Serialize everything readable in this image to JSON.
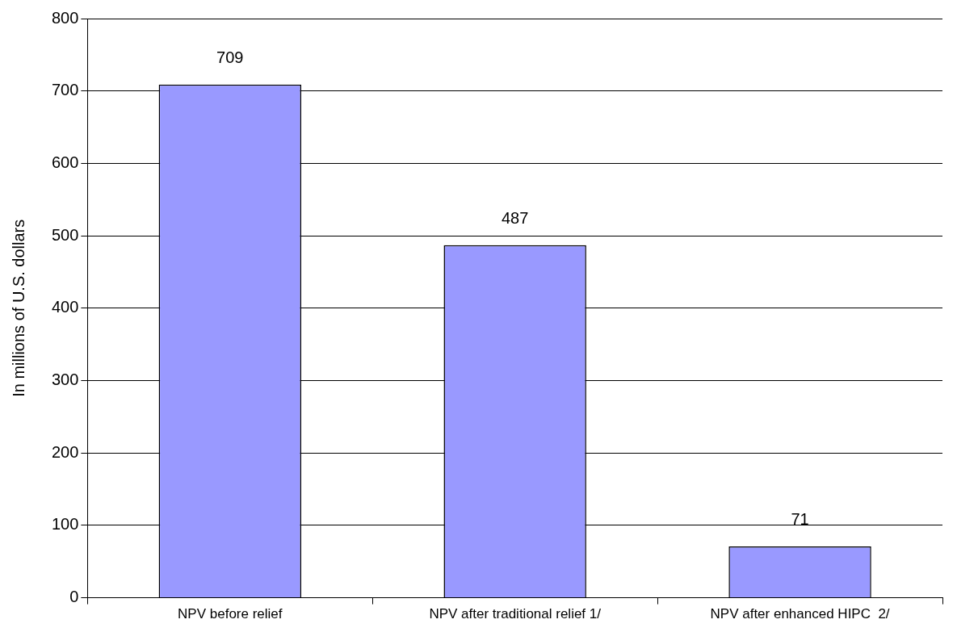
{
  "chart_data": {
    "type": "bar",
    "ylabel": "In millions of U.S. dollars",
    "categories": [
      "NPV before relief",
      "NPV after traditional relief 1/",
      "NPV after enhanced HIPC  2/"
    ],
    "values": [
      709,
      487,
      71
    ],
    "color": "#9999ff",
    "ylim": [
      0,
      800
    ],
    "yticks": [
      0,
      100,
      200,
      300,
      400,
      500,
      600,
      700,
      800
    ],
    "grid": "y",
    "data_labels": true,
    "legend": false
  }
}
